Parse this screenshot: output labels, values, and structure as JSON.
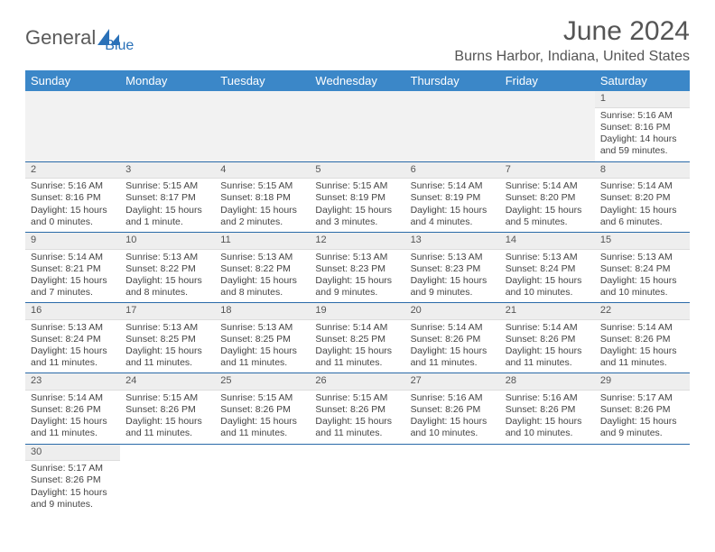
{
  "logo": {
    "text1": "General",
    "text2": "Blue",
    "accent": "#2a71b8"
  },
  "title": "June 2024",
  "location": "Burns Harbor, Indiana, United States",
  "styling": {
    "header_bg": "#3b87c8",
    "header_fg": "#ffffff",
    "row_divider": "#2a6aa8",
    "daynum_bg": "#eeeeee",
    "body_font_size": 10.5,
    "page_bg": "#ffffff"
  },
  "weekdays": [
    "Sunday",
    "Monday",
    "Tuesday",
    "Wednesday",
    "Thursday",
    "Friday",
    "Saturday"
  ],
  "days": {
    "1": {
      "sunrise": "5:16 AM",
      "sunset": "8:16 PM",
      "daylight": "14 hours and 59 minutes."
    },
    "2": {
      "sunrise": "5:16 AM",
      "sunset": "8:16 PM",
      "daylight": "15 hours and 0 minutes."
    },
    "3": {
      "sunrise": "5:15 AM",
      "sunset": "8:17 PM",
      "daylight": "15 hours and 1 minute."
    },
    "4": {
      "sunrise": "5:15 AM",
      "sunset": "8:18 PM",
      "daylight": "15 hours and 2 minutes."
    },
    "5": {
      "sunrise": "5:15 AM",
      "sunset": "8:19 PM",
      "daylight": "15 hours and 3 minutes."
    },
    "6": {
      "sunrise": "5:14 AM",
      "sunset": "8:19 PM",
      "daylight": "15 hours and 4 minutes."
    },
    "7": {
      "sunrise": "5:14 AM",
      "sunset": "8:20 PM",
      "daylight": "15 hours and 5 minutes."
    },
    "8": {
      "sunrise": "5:14 AM",
      "sunset": "8:20 PM",
      "daylight": "15 hours and 6 minutes."
    },
    "9": {
      "sunrise": "5:14 AM",
      "sunset": "8:21 PM",
      "daylight": "15 hours and 7 minutes."
    },
    "10": {
      "sunrise": "5:13 AM",
      "sunset": "8:22 PM",
      "daylight": "15 hours and 8 minutes."
    },
    "11": {
      "sunrise": "5:13 AM",
      "sunset": "8:22 PM",
      "daylight": "15 hours and 8 minutes."
    },
    "12": {
      "sunrise": "5:13 AM",
      "sunset": "8:23 PM",
      "daylight": "15 hours and 9 minutes."
    },
    "13": {
      "sunrise": "5:13 AM",
      "sunset": "8:23 PM",
      "daylight": "15 hours and 9 minutes."
    },
    "14": {
      "sunrise": "5:13 AM",
      "sunset": "8:24 PM",
      "daylight": "15 hours and 10 minutes."
    },
    "15": {
      "sunrise": "5:13 AM",
      "sunset": "8:24 PM",
      "daylight": "15 hours and 10 minutes."
    },
    "16": {
      "sunrise": "5:13 AM",
      "sunset": "8:24 PM",
      "daylight": "15 hours and 11 minutes."
    },
    "17": {
      "sunrise": "5:13 AM",
      "sunset": "8:25 PM",
      "daylight": "15 hours and 11 minutes."
    },
    "18": {
      "sunrise": "5:13 AM",
      "sunset": "8:25 PM",
      "daylight": "15 hours and 11 minutes."
    },
    "19": {
      "sunrise": "5:14 AM",
      "sunset": "8:25 PM",
      "daylight": "15 hours and 11 minutes."
    },
    "20": {
      "sunrise": "5:14 AM",
      "sunset": "8:26 PM",
      "daylight": "15 hours and 11 minutes."
    },
    "21": {
      "sunrise": "5:14 AM",
      "sunset": "8:26 PM",
      "daylight": "15 hours and 11 minutes."
    },
    "22": {
      "sunrise": "5:14 AM",
      "sunset": "8:26 PM",
      "daylight": "15 hours and 11 minutes."
    },
    "23": {
      "sunrise": "5:14 AM",
      "sunset": "8:26 PM",
      "daylight": "15 hours and 11 minutes."
    },
    "24": {
      "sunrise": "5:15 AM",
      "sunset": "8:26 PM",
      "daylight": "15 hours and 11 minutes."
    },
    "25": {
      "sunrise": "5:15 AM",
      "sunset": "8:26 PM",
      "daylight": "15 hours and 11 minutes."
    },
    "26": {
      "sunrise": "5:15 AM",
      "sunset": "8:26 PM",
      "daylight": "15 hours and 11 minutes."
    },
    "27": {
      "sunrise": "5:16 AM",
      "sunset": "8:26 PM",
      "daylight": "15 hours and 10 minutes."
    },
    "28": {
      "sunrise": "5:16 AM",
      "sunset": "8:26 PM",
      "daylight": "15 hours and 10 minutes."
    },
    "29": {
      "sunrise": "5:17 AM",
      "sunset": "8:26 PM",
      "daylight": "15 hours and 9 minutes."
    },
    "30": {
      "sunrise": "5:17 AM",
      "sunset": "8:26 PM",
      "daylight": "15 hours and 9 minutes."
    }
  },
  "labels": {
    "sunrise": "Sunrise:",
    "sunset": "Sunset:",
    "daylight": "Daylight:"
  },
  "layout": {
    "first_weekday_index": 6,
    "num_days": 30,
    "columns": 7
  }
}
